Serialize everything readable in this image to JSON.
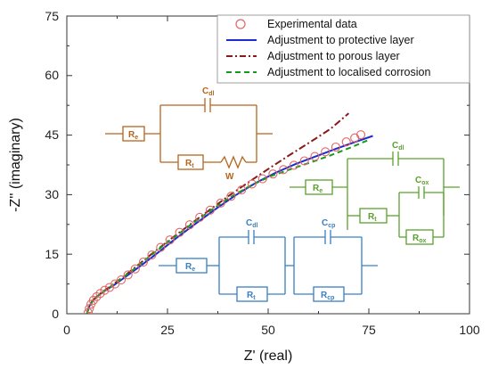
{
  "chart_data": {
    "type": "scatter",
    "xlabel": "Z' (real)",
    "ylabel": "-Z'' (imaginary)",
    "xlim": [
      0,
      100
    ],
    "ylim": [
      0,
      75
    ],
    "x_ticks": [
      "0",
      "25",
      "50",
      "75",
      "100"
    ],
    "y_ticks": [
      "0",
      "15",
      "30",
      "45",
      "60",
      "75"
    ],
    "legend_position": "top-right",
    "series": [
      {
        "name": "Experimental data",
        "kind": "markers",
        "color": "#e06666",
        "points": [
          [
            5.3,
            0.3
          ],
          [
            5.6,
            1.3
          ],
          [
            6.0,
            2.4
          ],
          [
            6.6,
            3.4
          ],
          [
            7.4,
            4.3
          ],
          [
            8.3,
            5.1
          ],
          [
            9.4,
            5.9
          ],
          [
            10.6,
            6.6
          ],
          [
            12.0,
            7.5
          ],
          [
            13.5,
            8.5
          ],
          [
            15.2,
            9.8
          ],
          [
            17.0,
            11.3
          ],
          [
            19.0,
            13.0
          ],
          [
            21.1,
            14.8
          ],
          [
            23.3,
            16.7
          ],
          [
            25.6,
            18.6
          ],
          [
            28.0,
            20.5
          ],
          [
            30.5,
            22.4
          ],
          [
            33.0,
            24.3
          ],
          [
            35.6,
            26.1
          ],
          [
            38.2,
            27.9
          ],
          [
            40.8,
            29.6
          ],
          [
            43.4,
            31.2
          ],
          [
            46.0,
            32.7
          ],
          [
            48.6,
            34.0
          ],
          [
            51.2,
            35.2
          ],
          [
            53.8,
            36.3
          ],
          [
            56.4,
            37.4
          ],
          [
            59.0,
            38.5
          ],
          [
            61.6,
            39.6
          ],
          [
            64.2,
            40.8
          ],
          [
            66.8,
            42.0
          ],
          [
            69.4,
            43.3
          ],
          [
            71.5,
            44.3
          ],
          [
            73.0,
            45.1
          ]
        ]
      },
      {
        "name": "Adjustment to protective layer",
        "kind": "solid",
        "color": "#1f2ad0",
        "points": [
          [
            5.0,
            0
          ],
          [
            5.4,
            1.5
          ],
          [
            6.2,
            3.0
          ],
          [
            7.5,
            4.4
          ],
          [
            9.5,
            5.8
          ],
          [
            12.0,
            7.4
          ],
          [
            15.0,
            9.6
          ],
          [
            18.5,
            12.2
          ],
          [
            22.5,
            15.3
          ],
          [
            27.0,
            18.9
          ],
          [
            32.0,
            22.7
          ],
          [
            37.0,
            26.4
          ],
          [
            42.0,
            29.9
          ],
          [
            47.0,
            33.0
          ],
          [
            52.0,
            35.6
          ],
          [
            57.0,
            37.8
          ],
          [
            62.0,
            39.7
          ],
          [
            67.0,
            41.6
          ],
          [
            72.0,
            43.4
          ],
          [
            76.0,
            44.8
          ]
        ]
      },
      {
        "name": "Adjustment to porous layer",
        "kind": "dashdot",
        "color": "#8b1a1a",
        "points": [
          [
            5.0,
            0
          ],
          [
            5.5,
            1.7
          ],
          [
            6.5,
            3.4
          ],
          [
            8.2,
            5.0
          ],
          [
            10.5,
            6.7
          ],
          [
            13.5,
            8.9
          ],
          [
            17.0,
            11.7
          ],
          [
            21.0,
            15.0
          ],
          [
            25.5,
            18.6
          ],
          [
            30.5,
            22.4
          ],
          [
            35.5,
            26.2
          ],
          [
            40.5,
            29.9
          ],
          [
            45.5,
            33.4
          ],
          [
            50.5,
            36.8
          ],
          [
            55.5,
            40.1
          ],
          [
            60.5,
            43.3
          ],
          [
            65.5,
            46.6
          ],
          [
            70.0,
            50.5
          ]
        ]
      },
      {
        "name": "Adjustment to localised corrosion",
        "kind": "dashed",
        "color": "#1a9a1a",
        "points": [
          [
            5.0,
            0
          ],
          [
            5.5,
            1.6
          ],
          [
            6.5,
            3.3
          ],
          [
            8.2,
            4.9
          ],
          [
            10.5,
            6.6
          ],
          [
            13.5,
            8.8
          ],
          [
            17.0,
            11.5
          ],
          [
            21.0,
            14.8
          ],
          [
            25.5,
            18.4
          ],
          [
            30.5,
            22.2
          ],
          [
            35.5,
            25.9
          ],
          [
            40.5,
            29.3
          ],
          [
            45.5,
            32.2
          ],
          [
            50.5,
            34.6
          ],
          [
            55.5,
            36.4
          ],
          [
            60.5,
            38.1
          ],
          [
            65.5,
            39.9
          ],
          [
            70.5,
            41.9
          ],
          [
            75.0,
            43.8
          ]
        ]
      }
    ],
    "circuits": [
      {
        "color": "#b5651d",
        "elements": [
          {
            "main": "C",
            "sub": "dl"
          },
          {
            "main": "R",
            "sub": "e"
          },
          {
            "main": "R",
            "sub": "t"
          },
          {
            "main": "W",
            "sub": ""
          }
        ]
      },
      {
        "color": "#5aa02c",
        "elements": [
          {
            "main": "C",
            "sub": "dl"
          },
          {
            "main": "R",
            "sub": "e"
          },
          {
            "main": "C",
            "sub": "ox"
          },
          {
            "main": "R",
            "sub": "t"
          },
          {
            "main": "R",
            "sub": "ox"
          }
        ]
      },
      {
        "color": "#3a7fc1",
        "elements": [
          {
            "main": "C",
            "sub": "dl"
          },
          {
            "main": "C",
            "sub": "cp"
          },
          {
            "main": "R",
            "sub": "e"
          },
          {
            "main": "R",
            "sub": "t"
          },
          {
            "main": "R",
            "sub": "cp"
          }
        ]
      }
    ]
  }
}
